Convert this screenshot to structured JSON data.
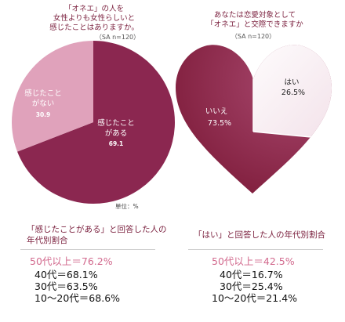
{
  "left": {
    "title": "「オネエ」の人を\n女性よりも女性らしいと\n感じたことはありますか。",
    "sample": "（SA  n=120）",
    "unit": "単位：%",
    "section_title": "「感じたことがある」と回答した人の\n年代別割合",
    "highlight": "50代以上＝76.2%",
    "stats": [
      "40代＝68.1%",
      "30代＝63.5%",
      "10～20代＝68.6%"
    ]
  },
  "right": {
    "title": "あなたは恋愛対象として\n「オネエ」と交際できますか",
    "sample": "（SA  n=120）",
    "section_title": "「はい」と回答した人の年代別割合",
    "highlight": "50代以上＝42.5%",
    "stats": [
      "40代＝16.7%",
      "30代＝25.4%",
      "10～20代＝21.4%"
    ]
  },
  "colors": {
    "dark": "#8b2750",
    "light": "#e0a2bb",
    "title": "#7a1f3d",
    "highlight": "#d26a8e"
  },
  "chart_data": [
    {
      "type": "pie",
      "title": "「オネエ」の人を女性よりも女性らしいと感じたことはありますか。",
      "categories": [
        "感じたことがある",
        "感じたことがない"
      ],
      "values": [
        69.1,
        30.9
      ],
      "unit": "%"
    },
    {
      "type": "pie",
      "title": "あなたは恋愛対象として「オネエ」と交際できますか",
      "categories": [
        "いいえ",
        "はい"
      ],
      "values": [
        73.5,
        26.5
      ],
      "unit": "%"
    }
  ]
}
